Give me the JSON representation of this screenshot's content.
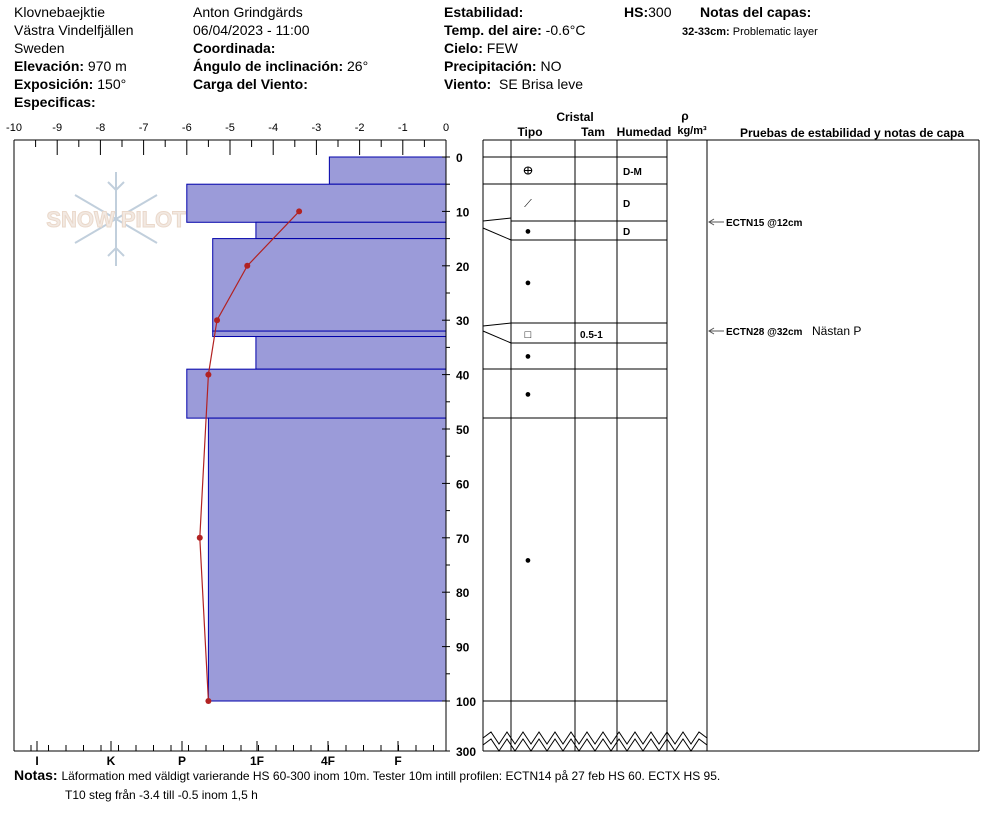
{
  "header": {
    "location": "Klovnebaejktie",
    "region": "Västra Vindelfjällen",
    "country": "Sweden",
    "elevation_label": "Elevación:",
    "elevation_value": "970 m",
    "aspect_label": "Exposición:",
    "aspect_value": "150°",
    "specifics_label": "Especificas:",
    "observer": "Anton Grindgärds",
    "datetime": "06/04/2023 - 11:00",
    "coord_label": "Coordinada:",
    "slope_label": "Ángulo de inclinación:",
    "slope_value": "26°",
    "windload_label": "Carga del Viento:",
    "stability_label": "Estabilidad:",
    "airtemp_label": "Temp. del aire:",
    "airtemp_value": "-0.6°C",
    "sky_label": "Cielo:",
    "sky_value": "FEW",
    "precip_label": "Precipitación:",
    "precip_value": "NO",
    "wind_label": "Viento:",
    "wind_value": "SE  Brisa leve",
    "hs_label": "HS:",
    "hs_value": "300",
    "layer_notes_label": "Notas del capas:",
    "layer_note_depth": "32-33cm:",
    "layer_note_text": "Problematic layer"
  },
  "logo_text": "SNOW PILOT",
  "columns": {
    "crystal": "Cristal",
    "type": "Tipo",
    "size": "Tam",
    "humidity": "Humedad",
    "rho": "ρ",
    "density_unit": "kg/m³",
    "tests": "Pruebas de estabilidad y notas de capa"
  },
  "layer_rows": [
    {
      "hardness": "D-M"
    },
    {
      "hardness": "D"
    },
    {
      "hardness": "D"
    },
    {
      "size": "0.5-1"
    }
  ],
  "tests": [
    {
      "label": "ECTN15 @12cm",
      "note": ""
    },
    {
      "label": "ECTN28 @32cm",
      "note": "Nästan P"
    }
  ],
  "notes_label": "Notas:",
  "notes_line1": "Läformation med väldigt varierande HS 60-300 inom 10m. Tester 10m intill profilen: ECTN14 på 27 feb HS 60. ECTX HS 95.",
  "notes_line2": "T10 steg från -3.4 till -0.5 inom 1,5 h",
  "colors": {
    "hardness_fill": "#9b9bd9",
    "hardness_stroke": "#0000aa",
    "temp_line": "#b22222"
  },
  "chart_data": {
    "type": "bar",
    "temp_axis": {
      "ticks": [
        "-10",
        "-9",
        "-8",
        "-7",
        "-6",
        "-5",
        "-4",
        "-3",
        "-2",
        "-1",
        "0"
      ],
      "min": -10,
      "max": 0
    },
    "hardness_axis": {
      "ticks": [
        "I",
        "K",
        "P",
        "1F",
        "4F",
        "F"
      ]
    },
    "depth_axis": {
      "ticks": [
        "0",
        "10",
        "20",
        "30",
        "40",
        "50",
        "60",
        "70",
        "80",
        "90",
        "100",
        "300"
      ],
      "unit": "cm"
    },
    "hardness_layers": [
      {
        "top": 0,
        "bottom": 5,
        "temp_equiv": -2.7
      },
      {
        "top": 5,
        "bottom": 12,
        "temp_equiv": -6.0
      },
      {
        "top": 12,
        "bottom": 15,
        "temp_equiv": -4.4
      },
      {
        "top": 15,
        "bottom": 32,
        "temp_equiv": -5.4
      },
      {
        "top": 32,
        "bottom": 33,
        "temp_equiv": -5.4
      },
      {
        "top": 33,
        "bottom": 39,
        "temp_equiv": -4.4
      },
      {
        "top": 39,
        "bottom": 48,
        "temp_equiv": -6.0
      },
      {
        "top": 48,
        "bottom": 100,
        "temp_equiv": -5.5
      }
    ],
    "temperature": [
      {
        "depth": 10,
        "temp": -3.4
      },
      {
        "depth": 20,
        "temp": -4.6
      },
      {
        "depth": 30,
        "temp": -5.3
      },
      {
        "depth": 40,
        "temp": -5.5
      },
      {
        "depth": 70,
        "temp": -5.7
      },
      {
        "depth": 100,
        "temp": -5.5
      }
    ],
    "grain_types": [
      {
        "depth": 2.5,
        "symbol": "ⴲ"
      },
      {
        "depth": 8.5,
        "symbol": "⟋"
      },
      {
        "depth": 13.5,
        "symbol": "●"
      },
      {
        "depth": 23,
        "symbol": "●"
      },
      {
        "depth": 32.5,
        "symbol": "□"
      },
      {
        "depth": 36.5,
        "symbol": "●"
      },
      {
        "depth": 43.5,
        "symbol": "●"
      },
      {
        "depth": 74,
        "symbol": "●"
      }
    ]
  }
}
